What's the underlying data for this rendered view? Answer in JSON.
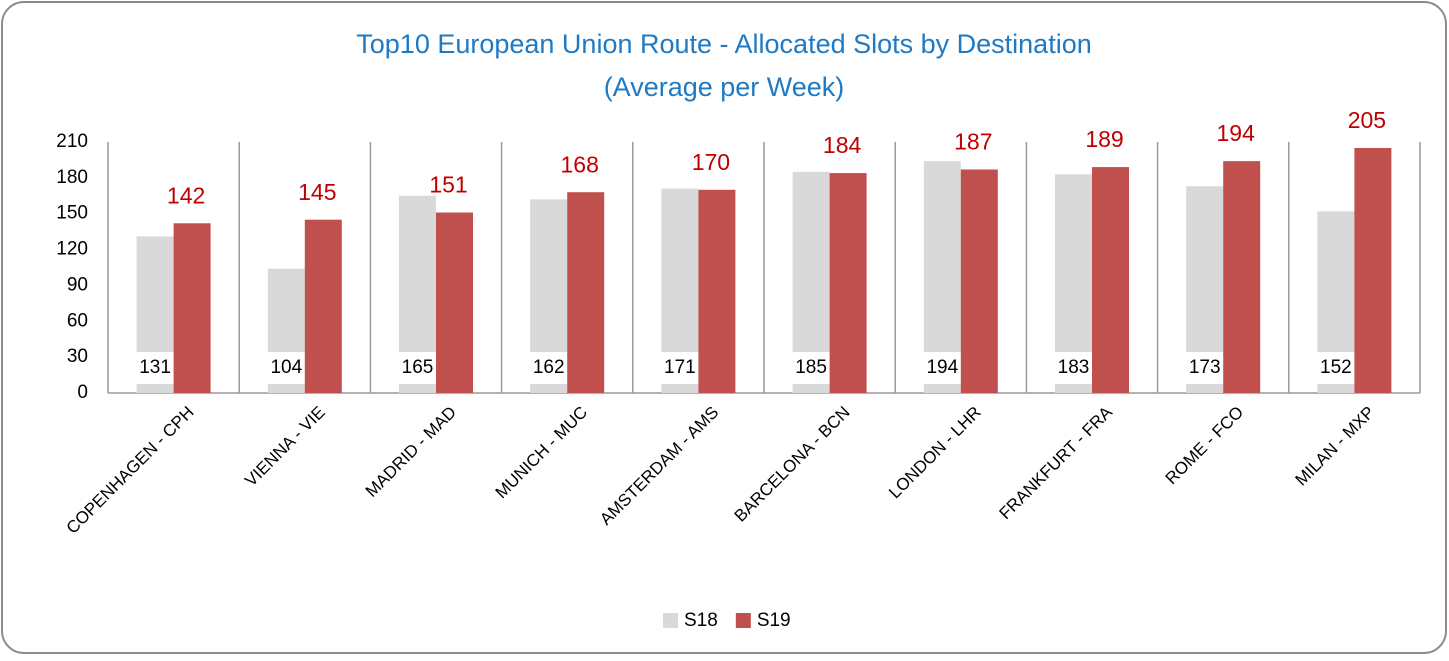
{
  "chart_data": {
    "type": "bar",
    "title": "Top10 European Union Route - Allocated Slots by Destination",
    "subtitle": "(Average per Week)",
    "categories": [
      "COPENHAGEN - CPH",
      "VIENNA - VIE",
      "MADRID - MAD",
      "MUNICH - MUC",
      "AMSTERDAM - AMS",
      "BARCELONA - BCN",
      "LONDON - LHR",
      "FRANKFURT - FRA",
      "ROME - FCO",
      "MILAN - MXP"
    ],
    "series": [
      {
        "name": "S18",
        "color": "#d9d9d9",
        "values": [
          131,
          104,
          165,
          162,
          171,
          185,
          194,
          183,
          173,
          152
        ]
      },
      {
        "name": "S19",
        "color": "#c0504d",
        "values": [
          142,
          145,
          151,
          168,
          170,
          184,
          187,
          189,
          194,
          205
        ]
      }
    ],
    "ylim": [
      0,
      210
    ],
    "yticks": [
      0,
      30,
      60,
      90,
      120,
      150,
      180,
      210
    ],
    "grid": false,
    "legend": "bottom"
  }
}
